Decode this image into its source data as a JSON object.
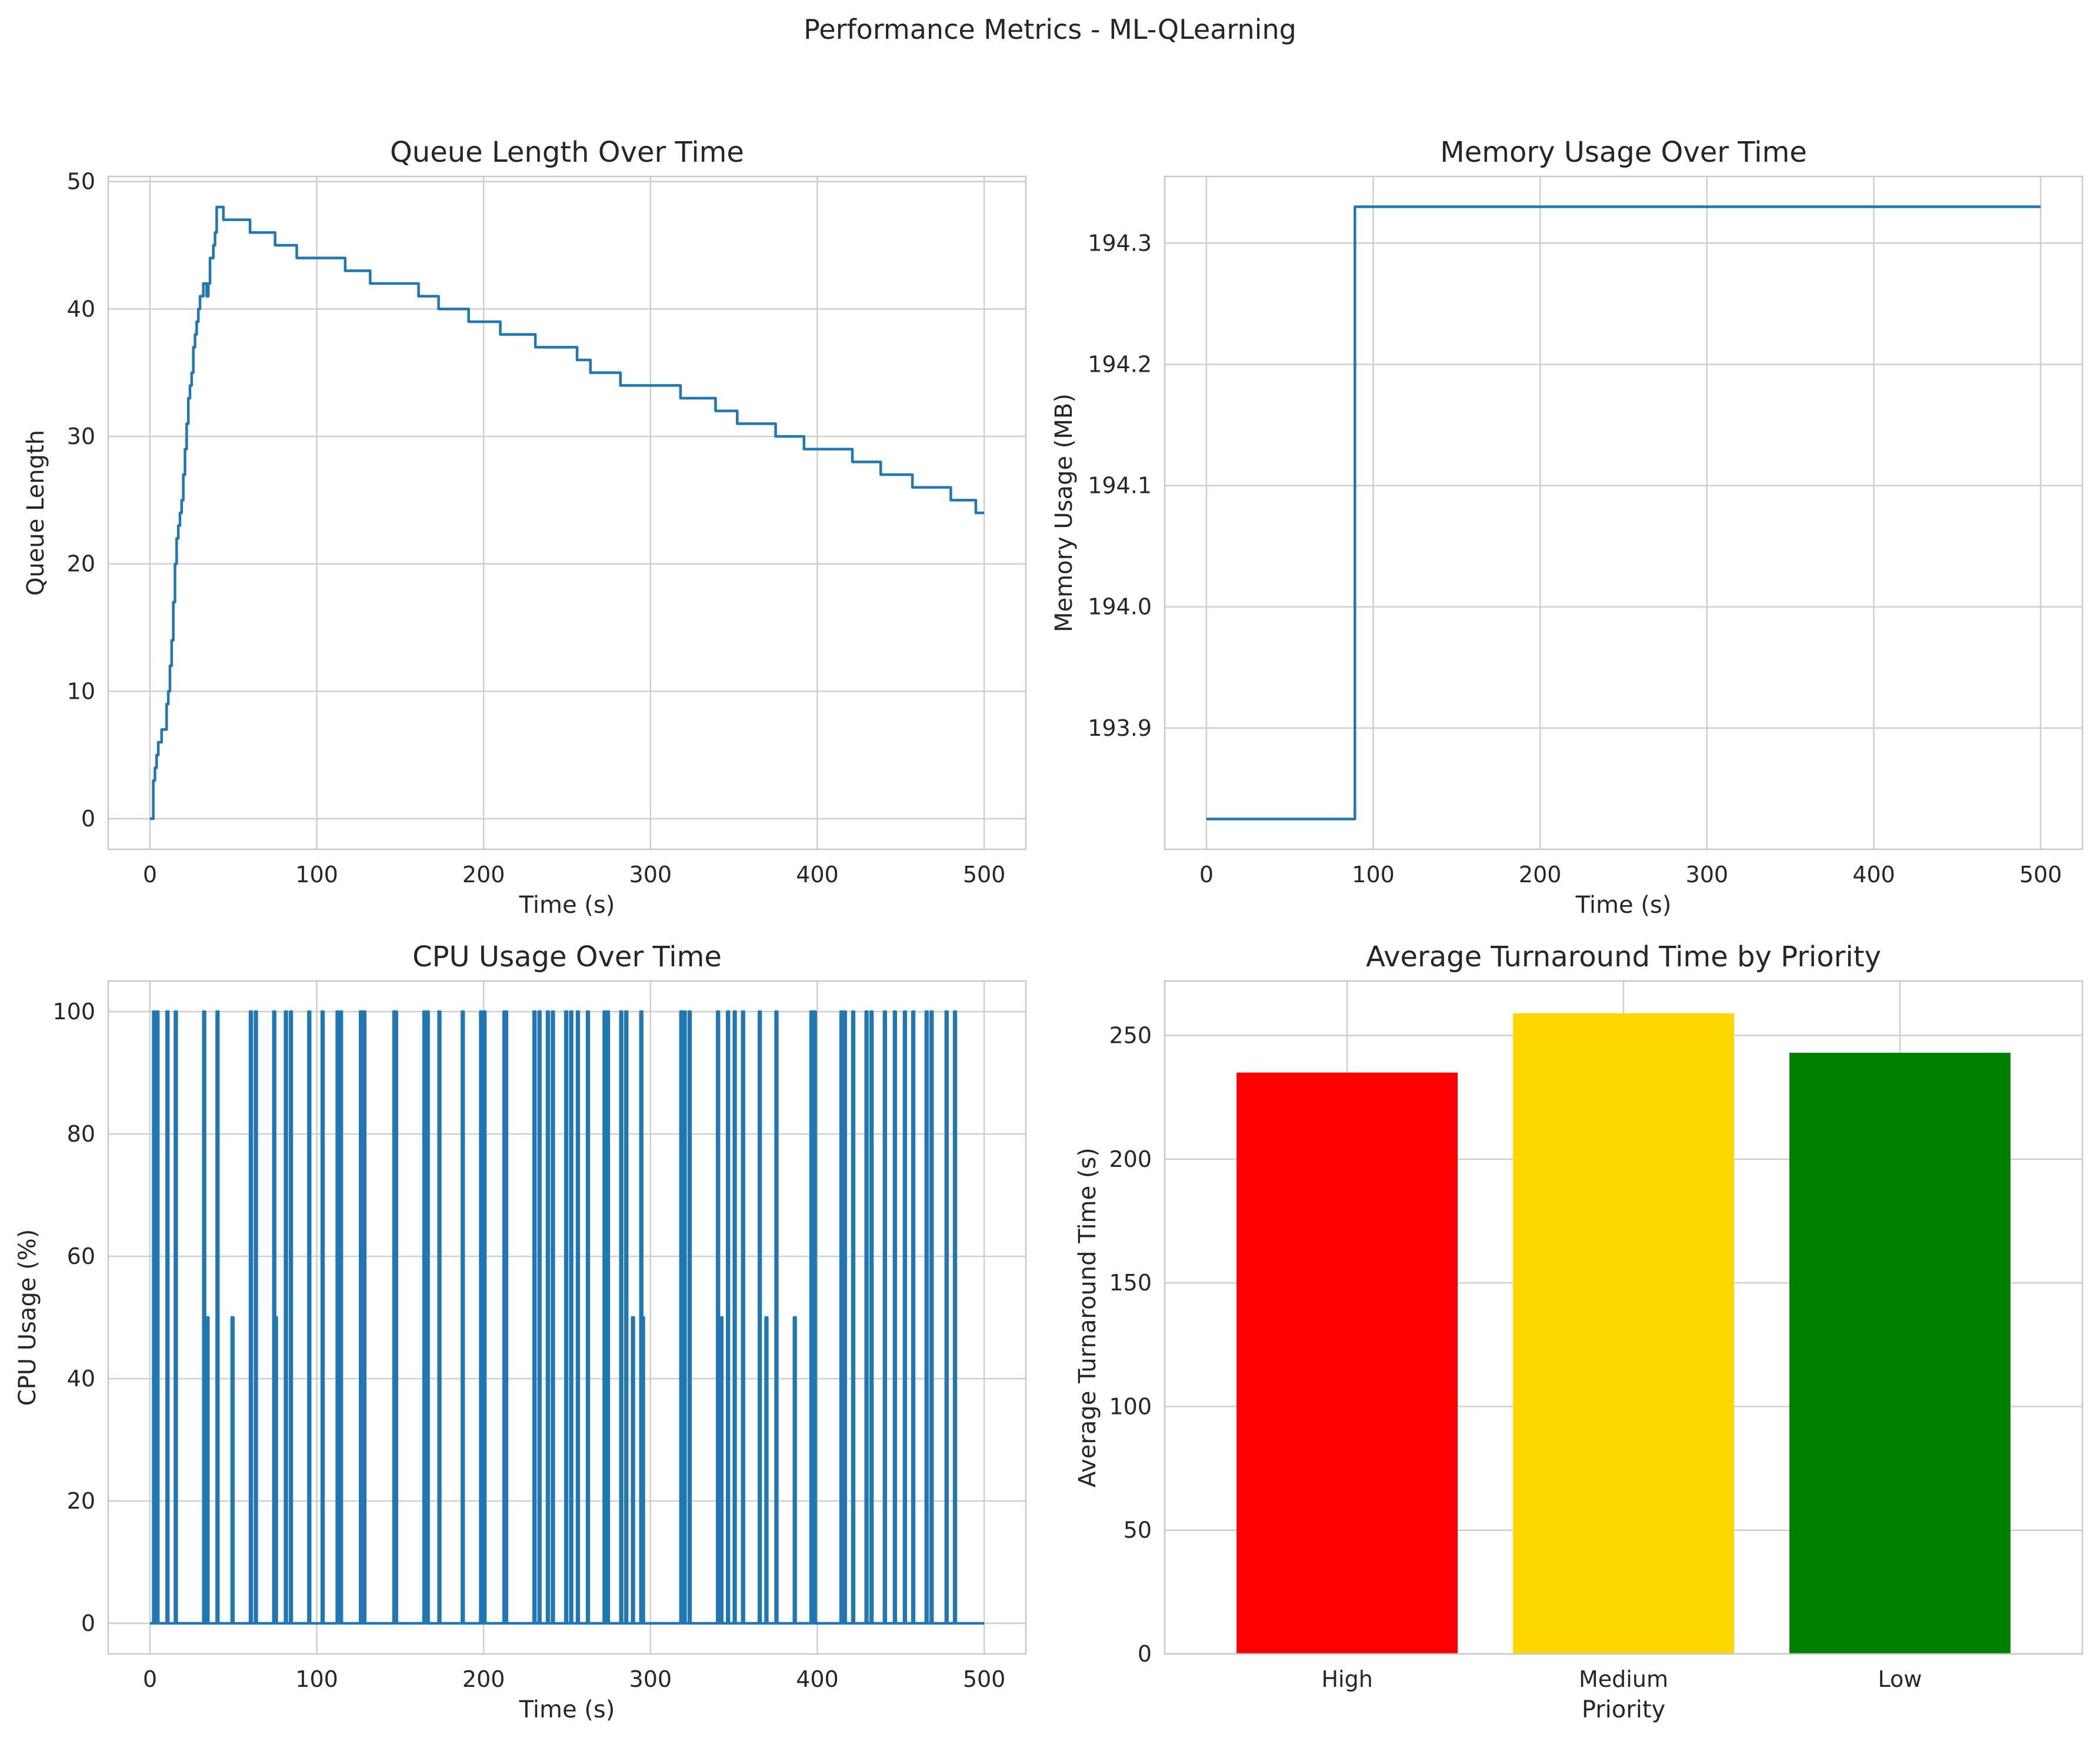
{
  "figure": {
    "title": "Performance Metrics - ML-QLearning"
  },
  "chart_data": [
    {
      "type": "line",
      "step": true,
      "title": "Queue Length Over Time",
      "xlabel": "Time (s)",
      "ylabel": "Queue Length",
      "xlim": [
        -25,
        525
      ],
      "ylim": [
        -2.4,
        50.4
      ],
      "xticks": [
        0,
        100,
        200,
        300,
        400,
        500
      ],
      "yticks": [
        0,
        10,
        20,
        30,
        40,
        50
      ],
      "grid": true,
      "series": [
        {
          "color": "#1f77b4",
          "x": [
            0,
            2,
            3,
            4,
            5,
            6,
            7,
            10,
            11,
            12,
            13,
            14,
            15,
            16,
            17,
            18,
            19,
            20,
            21,
            22,
            23,
            24,
            25,
            26,
            27,
            28,
            29,
            30,
            31,
            32,
            33,
            34,
            35,
            36,
            37,
            38,
            39,
            40,
            41,
            42,
            43,
            44,
            47,
            60,
            75,
            88,
            117,
            132,
            161,
            173,
            191,
            210,
            231,
            256,
            264,
            282,
            318,
            339,
            352,
            375,
            392,
            421,
            438,
            457,
            480,
            495,
            500
          ],
          "y": [
            0,
            3,
            4,
            5,
            6,
            6,
            7,
            9,
            10,
            12,
            14,
            17,
            20,
            22,
            23,
            24,
            25,
            27,
            29,
            31,
            33,
            34,
            35,
            37,
            38,
            39,
            40,
            41,
            41,
            42,
            42,
            41,
            42,
            44,
            44,
            45,
            46,
            48,
            48,
            48,
            48,
            47,
            47,
            46,
            45,
            44,
            43,
            42,
            41,
            40,
            39,
            38,
            37,
            36,
            35,
            34,
            33,
            32,
            31,
            30,
            29,
            28,
            27,
            26,
            25,
            24,
            24
          ]
        }
      ]
    },
    {
      "type": "line",
      "step": true,
      "title": "Memory Usage Over Time",
      "xlabel": "Time (s)",
      "ylabel": "Memory Usage (MB)",
      "xlim": [
        -25,
        525
      ],
      "ylim": [
        193.8,
        194.355
      ],
      "xticks": [
        0,
        100,
        200,
        300,
        400,
        500
      ],
      "yticks": [
        193.9,
        194.0,
        194.1,
        194.2,
        194.3
      ],
      "ytick_labels": [
        "193.9",
        "194.0",
        "194.1",
        "194.2",
        "194.3"
      ],
      "grid": true,
      "series": [
        {
          "color": "#1f77b4",
          "x": [
            0,
            89,
            500
          ],
          "y": [
            193.825,
            194.33,
            194.33
          ]
        }
      ]
    },
    {
      "type": "line",
      "step": true,
      "title": "CPU Usage Over Time",
      "xlabel": "Time (s)",
      "ylabel": "CPU Usage (%)",
      "xlim": [
        -25,
        525
      ],
      "ylim": [
        -5,
        105
      ],
      "xticks": [
        0,
        100,
        200,
        300,
        400,
        500
      ],
      "yticks": [
        0,
        20,
        40,
        60,
        80,
        100
      ],
      "grid": true,
      "spike_width": 1,
      "series": [
        {
          "color": "#1f77b4",
          "spikes_100": [
            2,
            4,
            10,
            15,
            32,
            40,
            60,
            63,
            74,
            81,
            84,
            95,
            103,
            112,
            114,
            126,
            128,
            146,
            147,
            164,
            166,
            173,
            187,
            198,
            200,
            212,
            213,
            230,
            233,
            238,
            241,
            249,
            252,
            256,
            262,
            272,
            274,
            282,
            285,
            294,
            318,
            320,
            323,
            340,
            346,
            350,
            355,
            365,
            375,
            396,
            398,
            414,
            416,
            421,
            429,
            432,
            440,
            446,
            452,
            457,
            465,
            468,
            477,
            482
          ],
          "spikes_50": [
            34,
            49,
            75,
            289,
            295,
            342,
            369,
            386
          ]
        }
      ]
    },
    {
      "type": "bar",
      "title": "Average Turnaround Time by Priority",
      "xlabel": "Priority",
      "ylabel": "Average Turnaround Time (s)",
      "ylim": [
        0,
        272
      ],
      "yticks": [
        0,
        50,
        100,
        150,
        200,
        250
      ],
      "grid": true,
      "categories": [
        "High",
        "Medium",
        "Low"
      ],
      "values": [
        235,
        259,
        243
      ],
      "colors": [
        "#ff0000",
        "#ffd700",
        "#008000"
      ]
    }
  ]
}
